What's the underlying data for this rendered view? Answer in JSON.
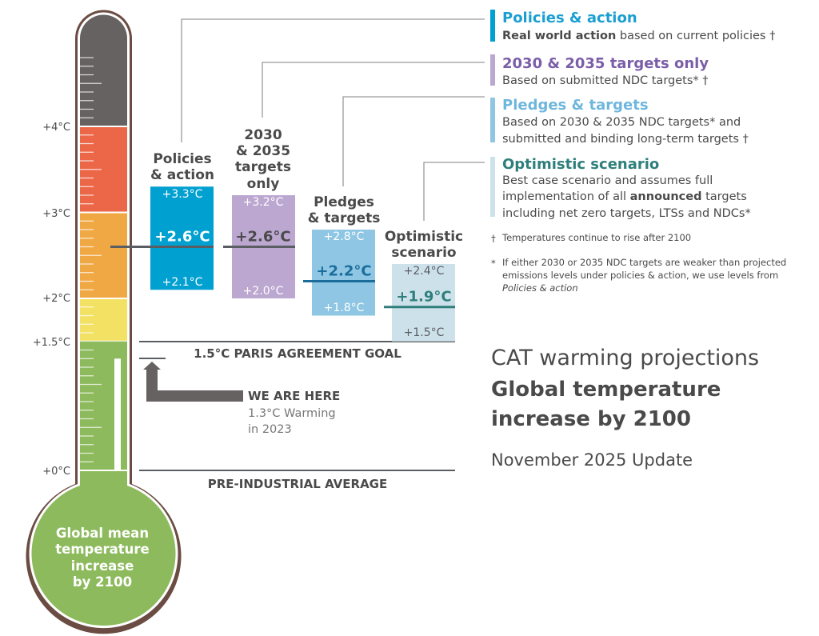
{
  "colors": {
    "tube_outline": "#6b4c43",
    "band_dark": "#666261",
    "band_red": "#ec6748",
    "band_orange": "#f0a844",
    "band_yellow": "#f2e163",
    "band_green": "#8cba5c",
    "policies": "#00a0d1",
    "targets_only": "#bca7d1",
    "pledges": "#8ec6e3",
    "optimistic": "#cde1ea",
    "text": "#4a4a4a"
  },
  "chart_data": {
    "type": "range-bar",
    "title": "CAT warming projections",
    "subtitle": "Global temperature increase by 2100",
    "date_label": "November 2025 Update",
    "unit": "°C",
    "ylim": [
      0,
      4.9
    ],
    "axis_ticks": [
      "+0°C",
      "+1.5°C",
      "+2°C",
      "+3°C",
      "+4°C"
    ],
    "axis_tick_values": [
      0,
      1.5,
      2,
      3,
      4
    ],
    "thermometer_label": [
      "Global mean",
      "temperature",
      "increase",
      "by 2100"
    ],
    "thermometer_bands": [
      {
        "from": 0,
        "to": 1.5,
        "color": "#8cba5c"
      },
      {
        "from": 1.5,
        "to": 2,
        "color": "#f2e163"
      },
      {
        "from": 2,
        "to": 3,
        "color": "#f0a844"
      },
      {
        "from": 3,
        "to": 4,
        "color": "#ec6748"
      },
      {
        "from": 4,
        "to": 4.9,
        "color": "#666261"
      }
    ],
    "current_warming": 1.3,
    "series": [
      {
        "name_lines": [
          "Policies",
          "& action"
        ],
        "low": 2.1,
        "median": 2.6,
        "high": 3.3,
        "low_label": "+2.1°C",
        "median_label": "+2.6°C",
        "high_label": "+3.3°C",
        "color": "#00a0d1",
        "line_color": "#5a5e63",
        "value_color": "#ffffff",
        "median_color": "#ffffff"
      },
      {
        "name_lines": [
          "2030",
          "& 2035",
          "targets",
          "only"
        ],
        "low": 2.0,
        "median": 2.6,
        "high": 3.2,
        "low_label": "+2.0°C",
        "median_label": "+2.6°C",
        "high_label": "+3.2°C",
        "color": "#bca7d1",
        "line_color": "#5a5e63",
        "value_color": "#ffffff",
        "median_color": "#4a4a4a"
      },
      {
        "name_lines": [
          "Pledges",
          "& targets"
        ],
        "low": 1.8,
        "median": 2.2,
        "high": 2.8,
        "low_label": "+1.8°C",
        "median_label": "+2.2°C",
        "high_label": "+2.8°C",
        "color": "#8ec6e3",
        "line_color": "#1b6e9c",
        "value_color": "#ffffff",
        "median_color": "#1b6e9c"
      },
      {
        "name_lines": [
          "Optimistic",
          "scenario"
        ],
        "low": 1.5,
        "median": 1.9,
        "high": 2.4,
        "low_label": "+1.5°C",
        "median_label": "+1.9°C",
        "high_label": "+2.4°C",
        "color": "#cde1ea",
        "line_color": "#2e7f7b",
        "value_color": "#5a5e63",
        "median_color": "#2e7f7b"
      }
    ],
    "reference_lines": [
      {
        "value": 1.5,
        "label": "1.5°C PARIS AGREEMENT GOAL"
      },
      {
        "value": 0,
        "label": "PRE-INDUSTRIAL AVERAGE"
      }
    ],
    "annotation": {
      "title": "WE ARE HERE",
      "lines": [
        "1.3°C Warming",
        "in 2023"
      ]
    }
  },
  "legend": [
    {
      "title": "Policies & action",
      "color": "#00a0d1",
      "title_color": "#1a9fd0",
      "desc": [
        {
          "bold": "Real world action",
          "rest": " based on current policies †"
        }
      ]
    },
    {
      "title": "2030 & 2035 targets only",
      "color": "#bca7d1",
      "title_color": "#7b5ea8",
      "desc": [
        {
          "bold": "",
          "rest": "Based on submitted NDC targets* †"
        }
      ]
    },
    {
      "title": "Pledges & targets",
      "color": "#8ec6e3",
      "title_color": "#6fb6dd",
      "desc": [
        {
          "bold": "",
          "rest": "Based on 2030 & 2035 NDC targets* and"
        },
        {
          "bold": "",
          "rest": "submitted and binding long-term targets †"
        }
      ]
    },
    {
      "title": "Optimistic scenario",
      "color": "#cde1ea",
      "title_color": "#2e7f7b",
      "desc": [
        {
          "bold": "",
          "rest": "Best case scenario and assumes full"
        },
        {
          "pre": "implementation of all ",
          "bold": "announced",
          "rest": " targets"
        },
        {
          "bold": "",
          "rest": "including net zero targets, LTSs and NDCs*"
        }
      ]
    }
  ],
  "footnotes": {
    "dagger_mark": "†",
    "dagger": "Temperatures continue to rise after 2100",
    "star_mark": "*",
    "star_lines": [
      "If either 2030 or 2035 NDC targets are weaker than projected",
      "emissions levels under policies & action, we use levels from"
    ],
    "star_italic": "Policies & action"
  }
}
